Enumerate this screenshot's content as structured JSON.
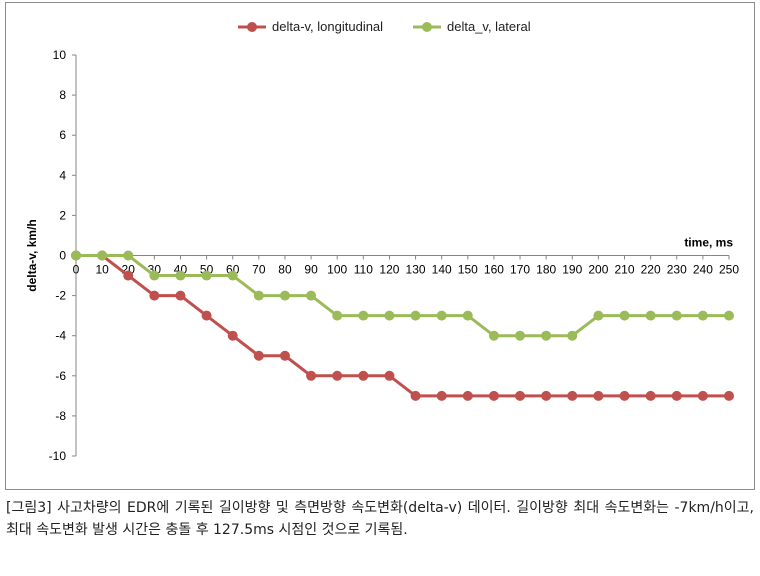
{
  "chart_data": {
    "type": "line",
    "title": "",
    "xlabel": "time, ms",
    "ylabel": "delta-v,  km/h",
    "ylim": [
      -10,
      10
    ],
    "yticks": [
      10,
      8,
      6,
      4,
      2,
      0,
      -2,
      -4,
      -6,
      -8,
      -10
    ],
    "xlim": [
      0,
      250
    ],
    "x": [
      0,
      10,
      20,
      30,
      40,
      50,
      60,
      70,
      80,
      90,
      100,
      110,
      120,
      130,
      140,
      150,
      160,
      170,
      180,
      190,
      200,
      210,
      220,
      230,
      240,
      250
    ],
    "grid": false,
    "legend_position": "top",
    "series": [
      {
        "name": "delta-v, longitudinal",
        "color": "#c0504d",
        "values": [
          0,
          0,
          -1,
          -2,
          -2,
          -3,
          -4,
          -5,
          -5,
          -6,
          -6,
          -6,
          -6,
          -7,
          -7,
          -7,
          -7,
          -7,
          -7,
          -7,
          -7,
          -7,
          -7,
          -7,
          -7,
          -7
        ]
      },
      {
        "name": "delta_v, lateral",
        "color": "#9bbb59",
        "values": [
          0,
          0,
          0,
          -1,
          -1,
          -1,
          -1,
          -2,
          -2,
          -2,
          -3,
          -3,
          -3,
          -3,
          -3,
          -3,
          -4,
          -4,
          -4,
          -4,
          -3,
          -3,
          -3,
          -3,
          -3,
          -3
        ]
      }
    ]
  },
  "caption": "[그림3] 사고차량의 EDR에 기록된 길이방향 및 측면방향 속도변화(delta-v) 데이터. 길이방향 최대 속도변화는 -7km/h이고, 최대 속도변화 발생 시간은 충돌 후 127.5ms 시점인 것으로 기록됨."
}
